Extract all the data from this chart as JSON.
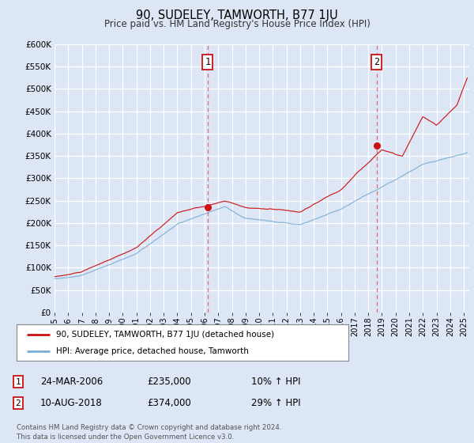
{
  "title": "90, SUDELEY, TAMWORTH, B77 1JU",
  "subtitle": "Price paid vs. HM Land Registry's House Price Index (HPI)",
  "bg_color": "#dce6f5",
  "plot_bg_color": "#dce6f5",
  "grid_color": "#ffffff",
  "red_color": "#cc1111",
  "blue_color": "#7aadd4",
  "ylim": [
    0,
    600000
  ],
  "yticks": [
    0,
    50000,
    100000,
    150000,
    200000,
    250000,
    300000,
    350000,
    400000,
    450000,
    500000,
    550000,
    600000
  ],
  "xlim_start": 1995.0,
  "xlim_end": 2025.4,
  "vline1_x": 2006.22,
  "vline2_x": 2018.61,
  "sale1_x": 2006.22,
  "sale1_y": 235000,
  "sale2_x": 2018.61,
  "sale2_y": 374000,
  "legend_label_red": "90, SUDELEY, TAMWORTH, B77 1JU (detached house)",
  "legend_label_blue": "HPI: Average price, detached house, Tamworth",
  "annotation1_date": "24-MAR-2006",
  "annotation1_price": "£235,000",
  "annotation1_hpi": "10% ↑ HPI",
  "annotation2_date": "10-AUG-2018",
  "annotation2_price": "£374,000",
  "annotation2_hpi": "29% ↑ HPI",
  "footer": "Contains HM Land Registry data © Crown copyright and database right 2024.\nThis data is licensed under the Open Government Licence v3.0."
}
